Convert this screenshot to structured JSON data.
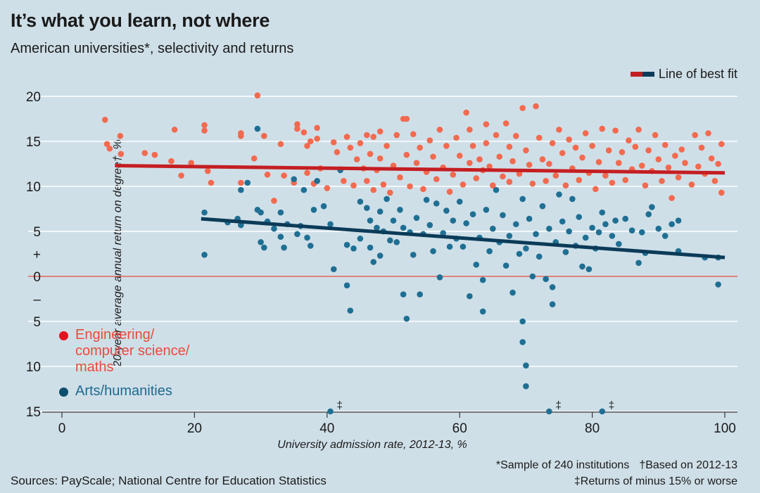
{
  "chart_data": {
    "type": "scatter",
    "title": "It’s what you learn, not where",
    "subtitle": "American universities*, selectivity and returns",
    "xlabel": "University admission rate, 2012-13, %",
    "ylabel": "20-year average annual return on degree†, %",
    "xlim": [
      0,
      100
    ],
    "ylim": [
      -15,
      20
    ],
    "x_ticks": [
      "0",
      "20",
      "40",
      "60",
      "80",
      "100"
    ],
    "y_ticks": [
      {
        "value": 20,
        "label": "20"
      },
      {
        "value": 15,
        "label": "15"
      },
      {
        "value": 10,
        "label": "10"
      },
      {
        "value": 5,
        "label": "5"
      },
      {
        "value": 2.5,
        "label": "+"
      },
      {
        "value": 0,
        "label": "0"
      },
      {
        "value": -2.5,
        "label": "–"
      },
      {
        "value": -5,
        "label": "5"
      },
      {
        "value": -10,
        "label": "10"
      },
      {
        "value": -15,
        "label": "15"
      }
    ],
    "grid": true,
    "legend_fit_label": "Line of best fit",
    "series": [
      {
        "name": "Engineering/\ncomputer science/\nmaths",
        "color": "#f26a4f",
        "fit": {
          "x": [
            8,
            100
          ],
          "y": [
            12.3,
            11.5
          ],
          "color": "#c41e22"
        },
        "seed": 7,
        "points": [
          [
            6.5,
            17.4
          ],
          [
            6.8,
            14.7
          ],
          [
            7.2,
            14.2
          ],
          [
            8.8,
            15.6
          ],
          [
            8.9,
            13.6
          ],
          [
            12.5,
            13.7
          ],
          [
            14,
            13.5
          ],
          [
            16.5,
            12.8
          ],
          [
            17,
            16.3
          ],
          [
            18,
            11.2
          ],
          [
            19.5,
            12.6
          ],
          [
            21.5,
            16.8
          ],
          [
            21.5,
            16.2
          ],
          [
            22,
            11.7
          ],
          [
            22.5,
            10.4
          ],
          [
            27,
            15.9
          ],
          [
            27,
            15.6
          ],
          [
            27,
            10.4
          ],
          [
            29,
            13.1
          ],
          [
            29.5,
            20.1
          ],
          [
            30.5,
            15.6
          ],
          [
            31,
            11.3
          ],
          [
            32,
            8.4
          ],
          [
            33,
            14.7
          ],
          [
            33.5,
            11.2
          ],
          [
            35,
            10.4
          ],
          [
            35.5,
            16.9
          ],
          [
            35.5,
            16.4
          ],
          [
            36.5,
            16
          ],
          [
            37,
            14.5
          ],
          [
            37,
            11.5
          ],
          [
            37.5,
            15
          ],
          [
            38,
            10.3
          ],
          [
            38.5,
            16.5
          ],
          [
            38.5,
            15.3
          ],
          [
            39,
            12
          ],
          [
            40,
            9.8
          ],
          [
            41,
            14.9
          ],
          [
            41.5,
            13.8
          ],
          [
            42,
            11.9
          ],
          [
            42.5,
            10.6
          ],
          [
            43,
            15.5
          ],
          [
            43.5,
            14.3
          ],
          [
            44,
            10.1
          ],
          [
            44.5,
            13
          ],
          [
            45,
            14.8
          ],
          [
            45.5,
            12
          ],
          [
            46,
            15.7
          ],
          [
            46,
            10.6
          ],
          [
            46.5,
            13.6
          ],
          [
            47,
            15.5
          ],
          [
            47,
            9.6
          ],
          [
            47.5,
            11.8
          ],
          [
            48,
            16.1
          ],
          [
            48,
            13.1
          ],
          [
            48.5,
            10.2
          ],
          [
            49,
            14.5
          ],
          [
            49.5,
            9.3
          ],
          [
            50,
            12.3
          ],
          [
            50.5,
            15.7
          ],
          [
            51,
            11
          ],
          [
            51.5,
            17.5
          ],
          [
            52,
            17.5
          ],
          [
            52,
            13.5
          ],
          [
            52.5,
            10
          ],
          [
            53,
            15.8
          ],
          [
            53.5,
            12.6
          ],
          [
            54,
            14.3
          ],
          [
            54.5,
            9.7
          ],
          [
            55,
            11.6
          ],
          [
            55.5,
            15.1
          ],
          [
            56,
            13.3
          ],
          [
            56.5,
            10.8
          ],
          [
            57,
            16.3
          ],
          [
            57.5,
            12.1
          ],
          [
            58,
            14.5
          ],
          [
            58.5,
            9.4
          ],
          [
            59,
            11.3
          ],
          [
            59.5,
            15.4
          ],
          [
            60,
            13.4
          ],
          [
            60.5,
            10.2
          ],
          [
            61,
            18.2
          ],
          [
            61.5,
            16.3
          ],
          [
            61.5,
            12.6
          ],
          [
            62,
            14.5
          ],
          [
            62.5,
            10.9
          ],
          [
            63,
            13
          ],
          [
            63.5,
            11.8
          ],
          [
            64,
            16.9
          ],
          [
            64,
            14.8
          ],
          [
            64.5,
            12.2
          ],
          [
            65,
            10.1
          ],
          [
            65.5,
            15.7
          ],
          [
            66,
            13.3
          ],
          [
            66.5,
            11.1
          ],
          [
            67,
            17
          ],
          [
            67.5,
            14.4
          ],
          [
            67.5,
            10.5
          ],
          [
            68,
            12.8
          ],
          [
            68.5,
            15.6
          ],
          [
            69,
            11.4
          ],
          [
            69.5,
            18.7
          ],
          [
            70,
            14
          ],
          [
            70.5,
            12.4
          ],
          [
            71,
            10.3
          ],
          [
            71.5,
            18.9
          ],
          [
            72,
            15.4
          ],
          [
            72.5,
            13
          ],
          [
            73,
            10.6
          ],
          [
            73.5,
            12.5
          ],
          [
            74,
            14.8
          ],
          [
            74.5,
            11.2
          ],
          [
            75,
            16.3
          ],
          [
            75.5,
            13.7
          ],
          [
            76,
            10.1
          ],
          [
            76.5,
            15.2
          ],
          [
            77,
            12
          ],
          [
            77.5,
            14.3
          ],
          [
            78,
            10.7
          ],
          [
            78.5,
            13.2
          ],
          [
            79,
            15.9
          ],
          [
            79.5,
            11.5
          ],
          [
            80,
            14.5
          ],
          [
            80.5,
            9.7
          ],
          [
            81,
            12.7
          ],
          [
            81.5,
            16.4
          ],
          [
            82,
            11.2
          ],
          [
            82.5,
            14
          ],
          [
            83,
            10.4
          ],
          [
            83.5,
            16.2
          ],
          [
            84,
            12.6
          ],
          [
            84.5,
            13.8
          ],
          [
            85,
            10.7
          ],
          [
            85.5,
            15.1
          ],
          [
            86,
            11.9
          ],
          [
            86.5,
            14.4
          ],
          [
            87,
            16.3
          ],
          [
            87.5,
            12.3
          ],
          [
            88,
            10.1
          ],
          [
            88.5,
            14
          ],
          [
            89,
            11.7
          ],
          [
            89.5,
            15.7
          ],
          [
            90,
            13
          ],
          [
            90.5,
            10.6
          ],
          [
            91,
            14.6
          ],
          [
            91.5,
            12.1
          ],
          [
            92,
            8.7
          ],
          [
            92.5,
            13.4
          ],
          [
            93,
            11
          ],
          [
            93.5,
            14.1
          ],
          [
            94,
            12.6
          ],
          [
            95,
            10.2
          ],
          [
            95.5,
            15.7
          ],
          [
            96,
            12.2
          ],
          [
            96.5,
            14.3
          ],
          [
            97,
            11.4
          ],
          [
            97.5,
            15.9
          ],
          [
            98,
            13.1
          ],
          [
            98.5,
            10.6
          ],
          [
            99,
            12.5
          ],
          [
            99.5,
            14.7
          ],
          [
            99.5,
            9.3
          ]
        ]
      },
      {
        "name": "Arts/humanities",
        "color": "#1f6f93",
        "fit": {
          "x": [
            21,
            100
          ],
          "y": [
            6.4,
            2.1
          ],
          "color": "#0b3b58"
        },
        "points": [
          [
            21.5,
            7.1
          ],
          [
            21.5,
            2.4
          ],
          [
            25,
            6
          ],
          [
            26.5,
            6.4
          ],
          [
            27,
            5.7
          ],
          [
            27,
            9.6
          ],
          [
            28,
            10.4
          ],
          [
            29.5,
            16.4
          ],
          [
            29.5,
            7.4
          ],
          [
            30,
            7.1
          ],
          [
            30,
            3.8
          ],
          [
            30.5,
            3.2
          ],
          [
            31,
            6.1
          ],
          [
            32,
            5.3
          ],
          [
            33,
            7.1
          ],
          [
            33,
            4.4
          ],
          [
            33.5,
            3.2
          ],
          [
            34,
            5.8
          ],
          [
            35,
            10.8
          ],
          [
            35.5,
            4.7
          ],
          [
            36,
            5.6
          ],
          [
            36.5,
            9.6
          ],
          [
            37,
            4.3
          ],
          [
            37.5,
            3.4
          ],
          [
            38,
            7.4
          ],
          [
            38.5,
            10.6
          ],
          [
            39.5,
            7.8
          ],
          [
            40.5,
            5.8
          ],
          [
            41,
            0.8
          ],
          [
            42,
            11.8
          ],
          [
            43,
            3.5
          ],
          [
            43,
            -1
          ],
          [
            43.5,
            -3.8
          ],
          [
            44,
            3.1
          ],
          [
            45,
            8.3
          ],
          [
            45,
            4.2
          ],
          [
            46,
            7.6
          ],
          [
            46.5,
            6.2
          ],
          [
            46.5,
            3.2
          ],
          [
            47,
            1.6
          ],
          [
            47.5,
            5.4
          ],
          [
            48,
            7.2
          ],
          [
            48,
            2.3
          ],
          [
            48.5,
            5
          ],
          [
            49,
            8.6
          ],
          [
            49.5,
            4
          ],
          [
            50,
            6.2
          ],
          [
            50.5,
            3.8
          ],
          [
            51,
            7.4
          ],
          [
            51.5,
            5.4
          ],
          [
            51.5,
            -2
          ],
          [
            52,
            -4.7
          ],
          [
            52.5,
            4.9
          ],
          [
            53,
            2.4
          ],
          [
            53.5,
            6.5
          ],
          [
            54,
            -2
          ],
          [
            54.5,
            4.7
          ],
          [
            55,
            8.5
          ],
          [
            55.5,
            5.7
          ],
          [
            56,
            2.8
          ],
          [
            56.5,
            8.1
          ],
          [
            57,
            -0.1
          ],
          [
            57.5,
            4.8
          ],
          [
            58,
            7.3
          ],
          [
            58.5,
            3.3
          ],
          [
            59,
            6.2
          ],
          [
            59.5,
            4.2
          ],
          [
            60,
            8.3
          ],
          [
            60.5,
            3.3
          ],
          [
            61,
            5.9
          ],
          [
            61.5,
            -2.2
          ],
          [
            62,
            6.9
          ],
          [
            62.5,
            1.3
          ],
          [
            63,
            4.3
          ],
          [
            63.5,
            -3.9
          ],
          [
            63.5,
            -0.4
          ],
          [
            64,
            7.4
          ],
          [
            64.5,
            2.8
          ],
          [
            65,
            5.3
          ],
          [
            65.5,
            9.6
          ],
          [
            66,
            3.8
          ],
          [
            66.5,
            6.8
          ],
          [
            67,
            1.2
          ],
          [
            67.5,
            4.5
          ],
          [
            68,
            -1.8
          ],
          [
            68.5,
            5.8
          ],
          [
            69,
            2.5
          ],
          [
            69.5,
            8.6
          ],
          [
            69.5,
            -5
          ],
          [
            69.5,
            -7.3
          ],
          [
            70,
            3.1
          ],
          [
            70,
            -9.9
          ],
          [
            70,
            -12.2
          ],
          [
            70.5,
            6.4
          ],
          [
            71,
            0
          ],
          [
            71.5,
            4.7
          ],
          [
            72,
            2.2
          ],
          [
            72.5,
            7.8
          ],
          [
            73,
            -0.3
          ],
          [
            73.5,
            5.3
          ],
          [
            74,
            -1.2
          ],
          [
            74,
            -3.1
          ],
          [
            74.5,
            3.8
          ],
          [
            75,
            9.1
          ],
          [
            75.5,
            6.1
          ],
          [
            76,
            2.7
          ],
          [
            76.5,
            5
          ],
          [
            77,
            8.6
          ],
          [
            77.5,
            3.4
          ],
          [
            78,
            6.6
          ],
          [
            78.5,
            1.1
          ],
          [
            79,
            4.3
          ],
          [
            79.5,
            0.8
          ],
          [
            80,
            5.4
          ],
          [
            80.5,
            3.1
          ],
          [
            81,
            4.9
          ],
          [
            81.5,
            7.1
          ],
          [
            82,
            5.8
          ],
          [
            83,
            4.5
          ],
          [
            83.5,
            6.2
          ],
          [
            84,
            3.6
          ],
          [
            85,
            6.4
          ],
          [
            86,
            5.1
          ],
          [
            87,
            1.5
          ],
          [
            87.5,
            4.9
          ],
          [
            88,
            2.6
          ],
          [
            88.5,
            6.9
          ],
          [
            89,
            7.7
          ],
          [
            90,
            5.3
          ],
          [
            91,
            4.5
          ],
          [
            92,
            5.8
          ],
          [
            93,
            6.2
          ],
          [
            93,
            2.8
          ],
          [
            97,
            2.1
          ],
          [
            99,
            2.1
          ],
          [
            99,
            -0.9
          ]
        ]
      }
    ],
    "outliers_note_mark": "‡",
    "outliers": [
      [
        40.5,
        -15
      ],
      [
        73.5,
        -15
      ],
      [
        81.5,
        -15
      ]
    ]
  },
  "notes": {
    "sample": "*Sample of 240 institutions",
    "based": "†Based on 2012-13",
    "returns": "‡Returns of minus 15% or worse"
  },
  "source": "Sources: PayScale; National Centre for Education Statistics",
  "colors": {
    "background": "#cfdfe8",
    "zero_line": "#e84b3c",
    "grid": "#ffffff"
  }
}
